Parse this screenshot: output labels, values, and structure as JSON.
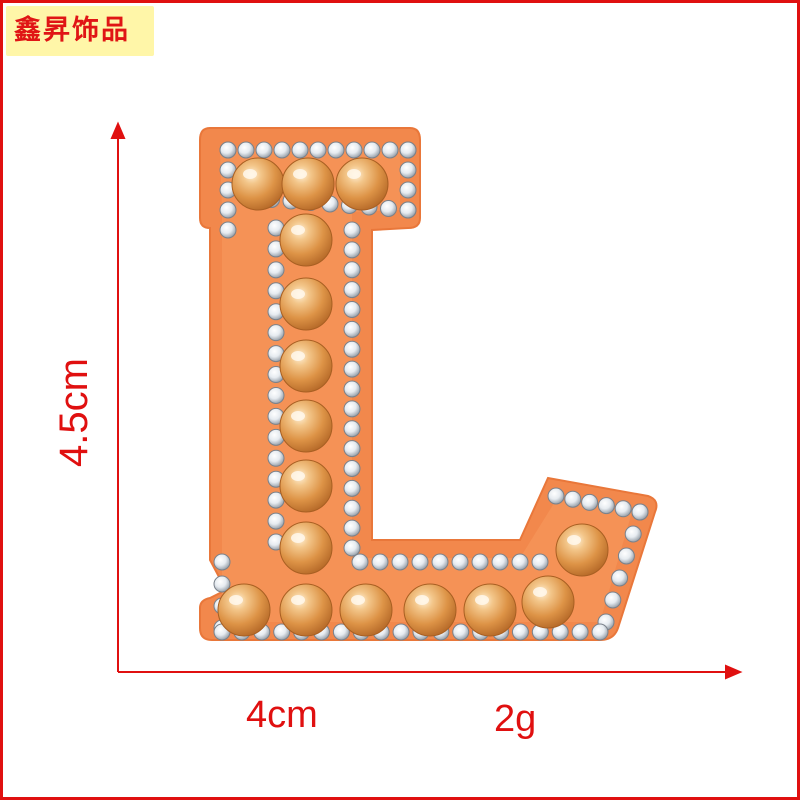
{
  "brand": {
    "text": "鑫昇饰品"
  },
  "product": {
    "name": "pearl-rhinestone-letter-L-patch",
    "colors": {
      "felt": "#f2884c",
      "pearl": "#e8a458",
      "rhinestone": "#eef2f6",
      "accent": "#e01010",
      "brand_bg": "#fff6a8"
    }
  },
  "dimensions": {
    "width": "4cm",
    "height": "4.5cm",
    "weight": "2g"
  }
}
